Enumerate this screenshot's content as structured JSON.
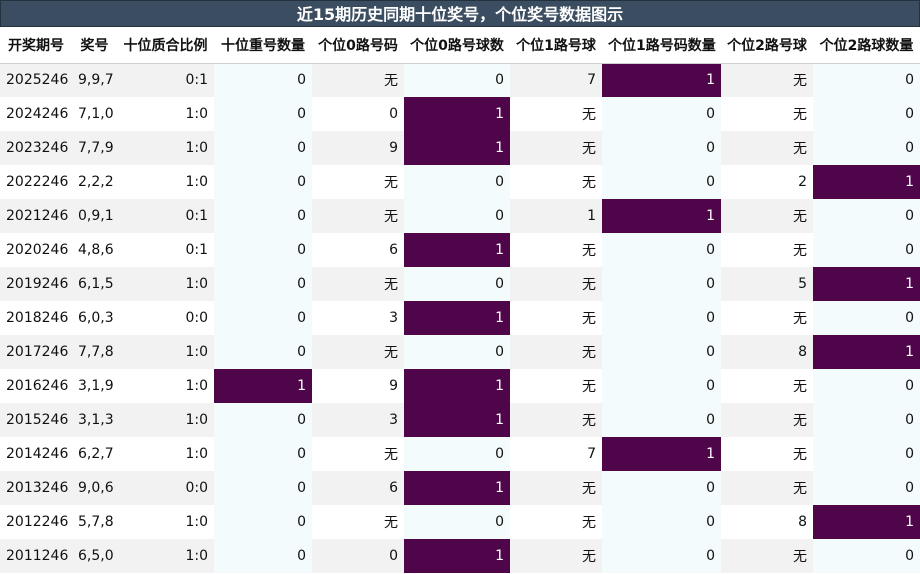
{
  "title": "近15期历史同期十位奖号，个位奖号数据图示",
  "headers": [
    "开奖期号",
    "奖号",
    "十位质合比例",
    "十位重号数量",
    "个位0路号码",
    "个位0路号球数",
    "个位1路号球",
    "个位1路号码数量",
    "个位2路号球",
    "个位2路球数量"
  ],
  "colors": {
    "title_bg": "#3b4d60",
    "highlight": "#4f0549",
    "stripe": "#f2f2f2",
    "light_col": "#f4fbfc"
  },
  "rows": [
    [
      "2025246",
      "9,9,7",
      "0:1",
      "0",
      "无",
      "0",
      "7",
      "1",
      "无",
      "0"
    ],
    [
      "2024246",
      "7,1,0",
      "1:0",
      "0",
      "0",
      "1",
      "无",
      "0",
      "无",
      "0"
    ],
    [
      "2023246",
      "7,7,9",
      "1:0",
      "0",
      "9",
      "1",
      "无",
      "0",
      "无",
      "0"
    ],
    [
      "2022246",
      "2,2,2",
      "1:0",
      "0",
      "无",
      "0",
      "无",
      "0",
      "2",
      "1"
    ],
    [
      "2021246",
      "0,9,1",
      "0:1",
      "0",
      "无",
      "0",
      "1",
      "1",
      "无",
      "0"
    ],
    [
      "2020246",
      "4,8,6",
      "0:1",
      "0",
      "6",
      "1",
      "无",
      "0",
      "无",
      "0"
    ],
    [
      "2019246",
      "6,1,5",
      "1:0",
      "0",
      "无",
      "0",
      "无",
      "0",
      "5",
      "1"
    ],
    [
      "2018246",
      "6,0,3",
      "0:0",
      "0",
      "3",
      "1",
      "无",
      "0",
      "无",
      "0"
    ],
    [
      "2017246",
      "7,7,8",
      "1:0",
      "0",
      "无",
      "0",
      "无",
      "0",
      "8",
      "1"
    ],
    [
      "2016246",
      "3,1,9",
      "1:0",
      "1",
      "9",
      "1",
      "无",
      "0",
      "无",
      "0"
    ],
    [
      "2015246",
      "3,1,3",
      "1:0",
      "0",
      "3",
      "1",
      "无",
      "0",
      "无",
      "0"
    ],
    [
      "2014246",
      "6,2,7",
      "1:0",
      "0",
      "无",
      "0",
      "7",
      "1",
      "无",
      "0"
    ],
    [
      "2013246",
      "9,0,6",
      "0:0",
      "0",
      "6",
      "1",
      "无",
      "0",
      "无",
      "0"
    ],
    [
      "2012246",
      "5,7,8",
      "1:0",
      "0",
      "无",
      "0",
      "无",
      "0",
      "8",
      "1"
    ],
    [
      "2011246",
      "6,5,0",
      "1:0",
      "0",
      "0",
      "1",
      "无",
      "0",
      "无",
      "0"
    ]
  ]
}
